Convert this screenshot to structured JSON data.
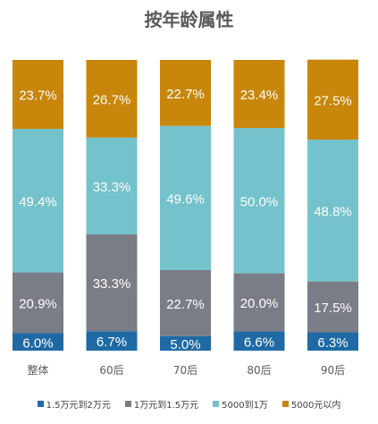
{
  "chart_data": {
    "type": "bar",
    "stacked": true,
    "percent": true,
    "title": "按年龄属性",
    "categories": [
      "整体",
      "60后",
      "70后",
      "80后",
      "90后"
    ],
    "series": [
      {
        "name": "1.5万元到2万元",
        "color": "#1f6aa5",
        "values": [
          6.0,
          6.7,
          5.0,
          6.6,
          6.3
        ]
      },
      {
        "name": "1万元到1.5万元",
        "color": "#7a7d86",
        "values": [
          20.9,
          33.3,
          22.7,
          20.0,
          17.5
        ]
      },
      {
        "name": "5000到1万",
        "color": "#74c2cb",
        "values": [
          49.4,
          33.3,
          49.6,
          50.0,
          48.8
        ]
      },
      {
        "name": "5000元以内",
        "color": "#c8860a",
        "values": [
          23.7,
          26.7,
          22.7,
          23.4,
          27.5
        ]
      }
    ],
    "ylim": [
      0,
      100
    ],
    "grid": false,
    "legend": "bottom"
  }
}
